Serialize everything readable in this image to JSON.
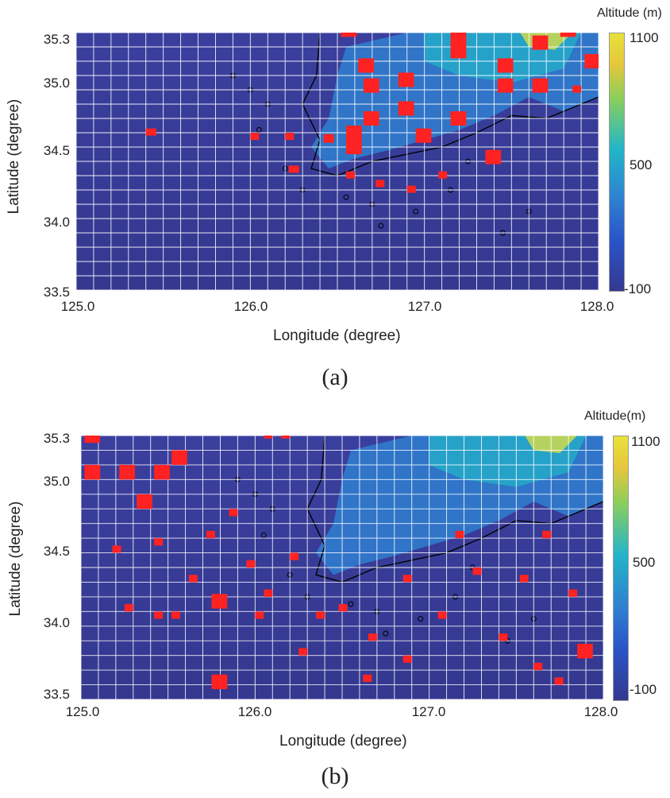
{
  "panels": [
    {
      "id": "a",
      "caption": "(a)",
      "colorbar_title": "Altitude (m)",
      "colorbar_ticks": [
        "1100",
        "500",
        "-100"
      ],
      "xlabel": "Longitude (degree)",
      "ylabel": "Latitude (degree)",
      "x_ticks": [
        "125.0",
        "126.0",
        "127.0",
        "128.0"
      ],
      "y_ticks": [
        "35.3",
        "35.0",
        "34.5",
        "34.0",
        "33.5"
      ],
      "x_range": [
        125.0,
        128.0
      ],
      "y_range": [
        33.5,
        35.3
      ],
      "colorbar_range": [
        -100,
        1100
      ]
    },
    {
      "id": "b",
      "caption": "(b)",
      "colorbar_title": "Altitude(m)",
      "colorbar_ticks": [
        "1100",
        "500",
        "-100"
      ],
      "xlabel": "Longitude (degree)",
      "ylabel": "Latitude (degree)",
      "x_ticks": [
        "125.0",
        "126.0",
        "127.0",
        "128.0"
      ],
      "y_ticks": [
        "35.3",
        "35.0",
        "34.5",
        "34.0",
        "33.5"
      ],
      "x_range": [
        125.0,
        128.0
      ],
      "y_range": [
        33.5,
        35.3
      ],
      "colorbar_range": [
        -100,
        1100
      ]
    }
  ],
  "colors": {
    "sea": "#3a3f9e",
    "sea_deep": "#34388f",
    "land_low": "#2f7fd0",
    "land_mid": "#22b5c9",
    "land_high": "#e7e23a",
    "grid": "#ffffff",
    "highlight": "#ff2222",
    "coast": "#000000"
  },
  "highlight_cells": {
    "a": [
      [
        126.52,
        35.27,
        0.09,
        0.1
      ],
      [
        127.78,
        35.27,
        0.09,
        0.1
      ],
      [
        127.62,
        35.18,
        0.09,
        0.1
      ],
      [
        127.15,
        35.12,
        0.09,
        0.2
      ],
      [
        126.62,
        35.02,
        0.09,
        0.1
      ],
      [
        127.42,
        35.02,
        0.09,
        0.1
      ],
      [
        127.92,
        35.05,
        0.09,
        0.1
      ],
      [
        126.85,
        34.92,
        0.09,
        0.1
      ],
      [
        126.65,
        34.88,
        0.09,
        0.1
      ],
      [
        127.42,
        34.88,
        0.09,
        0.1
      ],
      [
        127.62,
        34.88,
        0.09,
        0.1
      ],
      [
        126.85,
        34.72,
        0.09,
        0.1
      ],
      [
        126.65,
        34.65,
        0.09,
        0.1
      ],
      [
        127.15,
        34.65,
        0.09,
        0.1
      ],
      [
        126.42,
        34.53,
        0.06,
        0.06
      ],
      [
        126.55,
        34.45,
        0.09,
        0.2
      ],
      [
        126.95,
        34.53,
        0.09,
        0.1
      ],
      [
        127.35,
        34.38,
        0.09,
        0.1
      ],
      [
        125.4,
        34.58,
        0.06,
        0.05
      ],
      [
        126.0,
        34.55,
        0.05,
        0.05
      ],
      [
        126.2,
        34.55,
        0.05,
        0.05
      ],
      [
        126.22,
        34.32,
        0.06,
        0.05
      ],
      [
        126.55,
        34.28,
        0.05,
        0.05
      ],
      [
        126.72,
        34.22,
        0.05,
        0.05
      ],
      [
        126.9,
        34.18,
        0.05,
        0.05
      ],
      [
        127.08,
        34.28,
        0.05,
        0.05
      ],
      [
        127.85,
        34.88,
        0.05,
        0.05
      ]
    ],
    "b": [
      [
        125.02,
        35.25,
        0.09,
        0.1
      ],
      [
        125.02,
        35.0,
        0.09,
        0.1
      ],
      [
        125.22,
        35.0,
        0.09,
        0.1
      ],
      [
        125.42,
        35.0,
        0.09,
        0.1
      ],
      [
        125.52,
        35.1,
        0.09,
        0.1
      ],
      [
        125.32,
        34.8,
        0.09,
        0.1
      ],
      [
        125.75,
        33.57,
        0.09,
        0.1
      ],
      [
        125.75,
        34.12,
        0.09,
        0.1
      ],
      [
        125.42,
        34.55,
        0.05,
        0.05
      ],
      [
        125.18,
        34.5,
        0.05,
        0.05
      ],
      [
        125.25,
        34.1,
        0.05,
        0.05
      ],
      [
        125.42,
        34.05,
        0.05,
        0.05
      ],
      [
        125.52,
        34.05,
        0.05,
        0.05
      ],
      [
        125.62,
        34.3,
        0.05,
        0.05
      ],
      [
        125.72,
        34.6,
        0.05,
        0.05
      ],
      [
        125.85,
        34.75,
        0.05,
        0.05
      ],
      [
        125.95,
        34.4,
        0.05,
        0.05
      ],
      [
        126.05,
        34.2,
        0.05,
        0.05
      ],
      [
        126.2,
        34.45,
        0.05,
        0.05
      ],
      [
        126.05,
        35.28,
        0.05,
        0.05
      ],
      [
        126.15,
        35.28,
        0.05,
        0.05
      ],
      [
        126.25,
        33.8,
        0.05,
        0.05
      ],
      [
        126.48,
        34.1,
        0.05,
        0.05
      ],
      [
        126.62,
        33.62,
        0.05,
        0.05
      ],
      [
        126.65,
        33.9,
        0.05,
        0.05
      ],
      [
        126.85,
        33.75,
        0.05,
        0.05
      ],
      [
        127.05,
        34.05,
        0.05,
        0.05
      ],
      [
        127.15,
        34.6,
        0.05,
        0.05
      ],
      [
        127.25,
        34.35,
        0.05,
        0.05
      ],
      [
        127.4,
        33.9,
        0.05,
        0.05
      ],
      [
        127.52,
        34.3,
        0.05,
        0.05
      ],
      [
        127.6,
        33.7,
        0.05,
        0.05
      ],
      [
        127.72,
        33.6,
        0.05,
        0.05
      ],
      [
        127.8,
        34.2,
        0.05,
        0.05
      ],
      [
        127.85,
        33.78,
        0.09,
        0.1
      ],
      [
        127.65,
        34.6,
        0.05,
        0.05
      ],
      [
        126.0,
        34.05,
        0.05,
        0.05
      ],
      [
        126.35,
        34.05,
        0.05,
        0.05
      ],
      [
        126.85,
        34.3,
        0.05,
        0.05
      ]
    ]
  }
}
